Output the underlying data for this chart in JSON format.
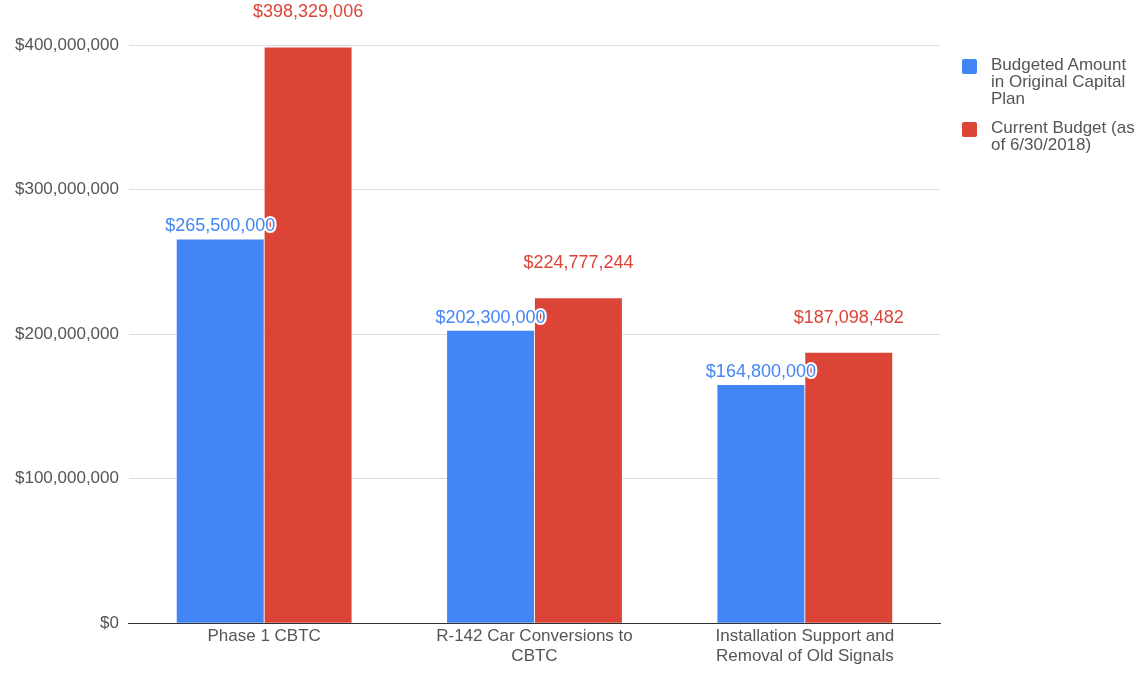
{
  "chart_data": {
    "type": "bar",
    "categories": [
      "Phase 1 CBTC",
      "R-142 Car Conversions to CBTC",
      "Installation Support and Removal of Old Signals"
    ],
    "series": [
      {
        "name": "Budgeted Amount in Original Capital Plan",
        "color": "#4285f4",
        "values": [
          265500000,
          202300000,
          164800000
        ],
        "value_labels": [
          "$265,500,000",
          "$202,300,000",
          "$164,800,000"
        ]
      },
      {
        "name": "Current Budget (as of 6/30/2018)",
        "color": "#db4437",
        "values": [
          398329006,
          224777244,
          187098482
        ],
        "value_labels": [
          "$398,329,006",
          "$224,777,244",
          "$187,098,482"
        ]
      }
    ],
    "ylim": [
      0,
      400000000
    ],
    "yticks": [
      {
        "value": 0,
        "label": "$0"
      },
      {
        "value": 100000000,
        "label": "$100,000,000"
      },
      {
        "value": 200000000,
        "label": "$200,000,000"
      },
      {
        "value": 300000000,
        "label": "$300,000,000"
      },
      {
        "value": 400000000,
        "label": "$400,000,000"
      }
    ],
    "grid": "y",
    "legend": "right"
  }
}
